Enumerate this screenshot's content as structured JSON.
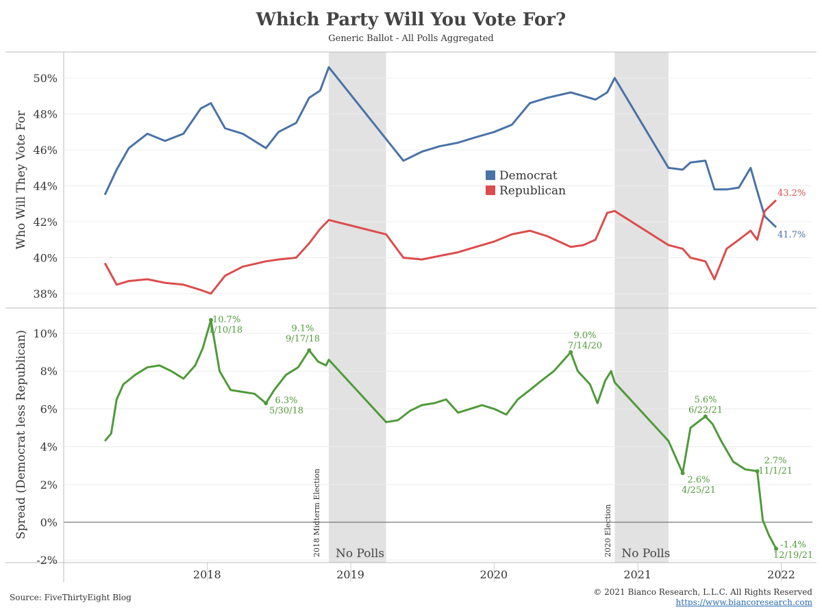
{
  "title": "Which Party Will You Vote For?",
  "subtitle": "Generic Ballot - All Polls Aggregated",
  "source": "Source: FiveThirtyEight Blog",
  "copyright": "© 2021 Bianco Research, L.L.C. All Rights Reserved",
  "website": "https://www.biancoresearch.com",
  "colors": {
    "democrat": "#4a72a6",
    "republican": "#dc4c4c",
    "spread": "#4f9a3a",
    "shade": "#e2e2e2"
  },
  "chart_data": [
    {
      "type": "line",
      "ylabel": "Who Will They Vote For",
      "ylim": [
        37.5,
        51.5
      ],
      "yticks": [
        "38%",
        "40%",
        "42%",
        "44%",
        "46%",
        "48%",
        "50%"
      ],
      "legend_placement": "center-right",
      "series": [
        {
          "name": "Democrat",
          "x": [
            "2017-04-15",
            "2017-05-15",
            "2017-06-15",
            "2017-08-01",
            "2017-09-15",
            "2017-11-01",
            "2017-12-15",
            "2018-01-10",
            "2018-02-15",
            "2018-04-01",
            "2018-05-30",
            "2018-07-01",
            "2018-08-15",
            "2018-09-17",
            "2018-10-15",
            "2018-11-06",
            "2019-04-01",
            "2019-05-15",
            "2019-07-01",
            "2019-08-15",
            "2019-10-01",
            "2019-11-15",
            "2020-01-01",
            "2020-02-15",
            "2020-04-01",
            "2020-05-15",
            "2020-07-14",
            "2020-08-15",
            "2020-09-15",
            "2020-10-15",
            "2020-11-03",
            "2021-03-20",
            "2021-04-25",
            "2021-05-15",
            "2021-06-22",
            "2021-07-15",
            "2021-08-15",
            "2021-09-15",
            "2021-10-15",
            "2021-11-01",
            "2021-11-20",
            "2021-12-19"
          ],
          "values": [
            43.5,
            44.9,
            46.1,
            46.9,
            46.5,
            46.9,
            48.3,
            48.6,
            47.2,
            46.9,
            46.1,
            47.0,
            47.5,
            48.9,
            49.3,
            50.6,
            46.6,
            45.4,
            45.9,
            46.2,
            46.4,
            46.7,
            47.0,
            47.4,
            48.6,
            48.9,
            49.2,
            49.0,
            48.8,
            49.2,
            50.0,
            45.0,
            44.9,
            45.3,
            45.4,
            43.8,
            43.8,
            43.9,
            45.0,
            43.7,
            42.3,
            41.7
          ]
        },
        {
          "name": "Republican",
          "x": [
            "2017-04-15",
            "2017-05-15",
            "2017-06-15",
            "2017-08-01",
            "2017-09-15",
            "2017-11-01",
            "2017-12-15",
            "2018-01-10",
            "2018-02-15",
            "2018-04-01",
            "2018-05-30",
            "2018-07-01",
            "2018-08-15",
            "2018-09-17",
            "2018-10-15",
            "2018-11-06",
            "2019-04-01",
            "2019-05-15",
            "2019-07-01",
            "2019-08-15",
            "2019-10-01",
            "2019-11-15",
            "2020-01-01",
            "2020-02-15",
            "2020-04-01",
            "2020-05-15",
            "2020-07-14",
            "2020-08-15",
            "2020-09-15",
            "2020-10-15",
            "2020-11-03",
            "2021-03-20",
            "2021-04-25",
            "2021-05-15",
            "2021-06-22",
            "2021-07-15",
            "2021-08-15",
            "2021-09-15",
            "2021-10-15",
            "2021-11-01",
            "2021-11-20",
            "2021-12-19"
          ],
          "values": [
            39.7,
            38.5,
            38.7,
            38.8,
            38.6,
            38.5,
            38.2,
            38.0,
            39.0,
            39.5,
            39.8,
            39.9,
            40.0,
            40.8,
            41.6,
            42.1,
            41.3,
            40.0,
            39.9,
            40.1,
            40.3,
            40.6,
            40.9,
            41.3,
            41.5,
            41.2,
            40.6,
            40.7,
            41.0,
            42.5,
            42.6,
            40.7,
            40.5,
            40.0,
            39.8,
            38.8,
            40.5,
            41.0,
            41.5,
            41.0,
            42.6,
            43.2
          ]
        }
      ],
      "annotations": [
        {
          "text": "43.2%",
          "color": "#dc4c4c"
        },
        {
          "text": "41.7%",
          "color": "#4a72a6"
        }
      ]
    },
    {
      "type": "line",
      "ylabel": "Spread (Democrat less Republican)",
      "ylim": [
        -2.2,
        11.3
      ],
      "yticks": [
        "-2%",
        "0%",
        "2%",
        "4%",
        "6%",
        "8%",
        "10%"
      ],
      "xlabel": "",
      "series": [
        {
          "name": "Spread",
          "x": [
            "2017-04-15",
            "2017-05-01",
            "2017-05-15",
            "2017-06-01",
            "2017-07-01",
            "2017-08-01",
            "2017-09-01",
            "2017-10-01",
            "2017-11-01",
            "2017-12-01",
            "2017-12-20",
            "2018-01-10",
            "2018-02-01",
            "2018-03-01",
            "2018-04-01",
            "2018-05-01",
            "2018-05-30",
            "2018-06-20",
            "2018-07-20",
            "2018-08-20",
            "2018-09-17",
            "2018-10-10",
            "2018-10-30",
            "2018-11-06",
            "2019-04-01",
            "2019-05-01",
            "2019-06-01",
            "2019-07-01",
            "2019-08-01",
            "2019-09-01",
            "2019-10-01",
            "2019-11-01",
            "2019-12-01",
            "2020-01-01",
            "2020-02-01",
            "2020-03-01",
            "2020-04-01",
            "2020-05-01",
            "2020-06-01",
            "2020-07-14",
            "2020-08-01",
            "2020-09-01",
            "2020-09-20",
            "2020-10-10",
            "2020-10-25",
            "2020-11-03",
            "2021-03-20",
            "2021-04-25",
            "2021-05-15",
            "2021-06-22",
            "2021-07-10",
            "2021-08-01",
            "2021-09-01",
            "2021-10-01",
            "2021-11-01",
            "2021-11-15",
            "2021-12-01",
            "2021-12-19"
          ],
          "values": [
            4.3,
            4.7,
            6.5,
            7.3,
            7.8,
            8.2,
            8.3,
            8.0,
            7.6,
            8.3,
            9.2,
            10.7,
            8.0,
            7.0,
            6.9,
            6.8,
            6.3,
            7.0,
            7.8,
            8.2,
            9.1,
            8.5,
            8.3,
            8.6,
            5.3,
            5.4,
            5.9,
            6.2,
            6.3,
            6.5,
            5.8,
            6.0,
            6.2,
            6.0,
            5.7,
            6.5,
            7.0,
            7.5,
            8.0,
            9.0,
            8.0,
            7.3,
            6.3,
            7.5,
            8.0,
            7.4,
            4.3,
            2.6,
            5.0,
            5.6,
            5.2,
            4.3,
            3.2,
            2.8,
            2.7,
            0.1,
            -0.7,
            -1.4
          ]
        }
      ],
      "annotations": [
        {
          "value": "10.7%",
          "date": "1/10/18"
        },
        {
          "value": "9.1%",
          "date": "9/17/18"
        },
        {
          "value": "6.3%",
          "date": "5/30/18"
        },
        {
          "value": "9.0%",
          "date": "7/14/20"
        },
        {
          "value": "5.6%",
          "date": "6/22/21"
        },
        {
          "value": "2.6%",
          "date": "4/25/21"
        },
        {
          "value": "2.7%",
          "date": "11/1/21"
        },
        {
          "value": "-1.4%",
          "date": "12/19/21"
        }
      ],
      "events": [
        {
          "label": "2018 Midterm Election"
        },
        {
          "label": "2020 Election"
        }
      ],
      "shaded_periods": [
        {
          "label": "No Polls"
        },
        {
          "label": "No Polls"
        }
      ]
    }
  ],
  "x_axis": {
    "ticks": [
      "2018",
      "2019",
      "2020",
      "2021",
      "2022"
    ]
  }
}
